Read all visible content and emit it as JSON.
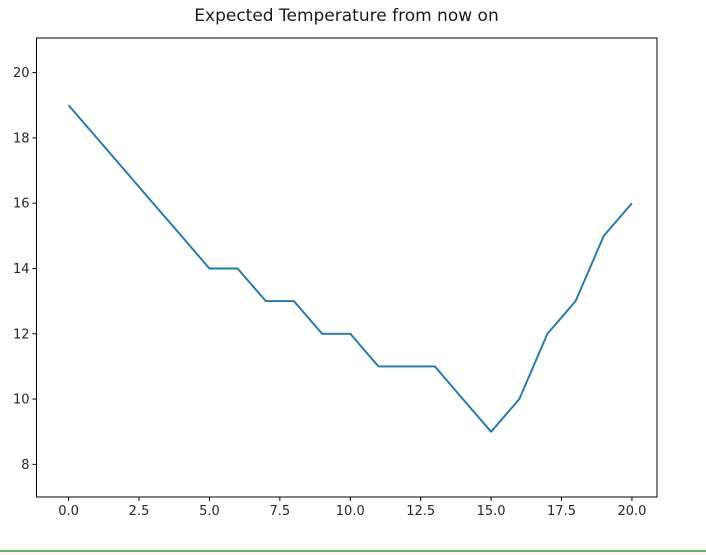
{
  "figure": {
    "background": "#ffffff"
  },
  "chart_data": {
    "type": "line",
    "title": "Expected Temperature from now on",
    "x": [
      0,
      1,
      2,
      3,
      4,
      5,
      6,
      7,
      8,
      9,
      10,
      11,
      12,
      13,
      14,
      15,
      16,
      17,
      18,
      19,
      20
    ],
    "values": [
      19,
      18,
      17,
      16,
      15,
      14,
      14,
      13,
      13,
      12,
      12,
      11,
      11,
      11,
      10,
      9,
      10,
      12,
      13,
      15,
      16
    ],
    "xlabel": "",
    "ylabel": "",
    "xlim": [
      -1.14,
      20.89
    ],
    "ylim": [
      7.0,
      21.06
    ],
    "xticks": [
      0,
      2.5,
      5,
      7.5,
      10,
      12.5,
      15,
      17.5,
      20
    ],
    "xtick_labels": [
      "0.0",
      "2.5",
      "5.0",
      "7.5",
      "10.0",
      "12.5",
      "15.0",
      "17.5",
      "20.0"
    ],
    "yticks": [
      8,
      10,
      12,
      14,
      16,
      18,
      20
    ],
    "ytick_labels": [
      "8",
      "10",
      "12",
      "14",
      "16",
      "18",
      "20"
    ],
    "grid": false,
    "legend": null,
    "line_color": "#1f77b4",
    "line_width": 1.9,
    "axes_edge_color": "#000000",
    "tick_color": "#000000",
    "tick_label_color": "#262626",
    "title_color": "#1a1a1a",
    "tick_font_size": 13
  },
  "divider": {
    "color": "#5db85f"
  }
}
